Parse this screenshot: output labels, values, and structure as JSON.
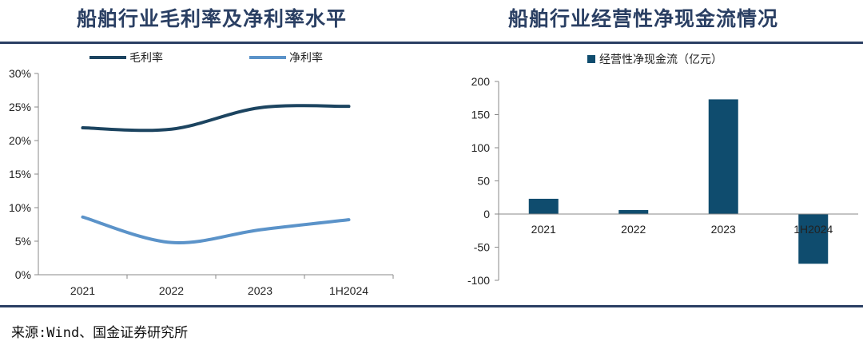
{
  "left_title": "船舶行业毛利率及净利率水平",
  "right_title": "船舶行业经营性净现金流情况",
  "source": "来源:Wind、国金证券研究所",
  "colors": {
    "title": "#2a3f63",
    "rule": "#2a3f63",
    "gross": "#1c4460",
    "net": "#5b93c9",
    "bar": "#0f4c6e",
    "axis": "#8a8a8a"
  },
  "chart_data": [
    {
      "type": "line",
      "title": "船舶行业毛利率及净利率水平",
      "categories": [
        "2021",
        "2022",
        "2023",
        "1H2024"
      ],
      "series": [
        {
          "name": "毛利率",
          "values": [
            21.9,
            21.7,
            24.9,
            25.1
          ]
        },
        {
          "name": "净利率",
          "values": [
            8.6,
            4.8,
            6.7,
            8.2
          ]
        }
      ],
      "ylim": [
        0,
        30
      ],
      "yticks": [
        "0%",
        "5%",
        "10%",
        "15%",
        "20%",
        "25%",
        "30%"
      ],
      "ytick_values": [
        0,
        5,
        10,
        15,
        20,
        25,
        30
      ],
      "legend_position": "top",
      "grid": false
    },
    {
      "type": "bar",
      "title": "船舶行业经营性净现金流情况",
      "categories": [
        "2021",
        "2022",
        "2023",
        "1H2024"
      ],
      "series": [
        {
          "name": "经营性净现金流（亿元）",
          "values": [
            23,
            6,
            173,
            -75
          ]
        }
      ],
      "ylim": [
        -100,
        200
      ],
      "yticks": [
        "-100",
        "-50",
        "0",
        "50",
        "100",
        "150",
        "200"
      ],
      "ytick_values": [
        -100,
        -50,
        0,
        50,
        100,
        150,
        200
      ],
      "legend_position": "top",
      "grid": false
    }
  ]
}
